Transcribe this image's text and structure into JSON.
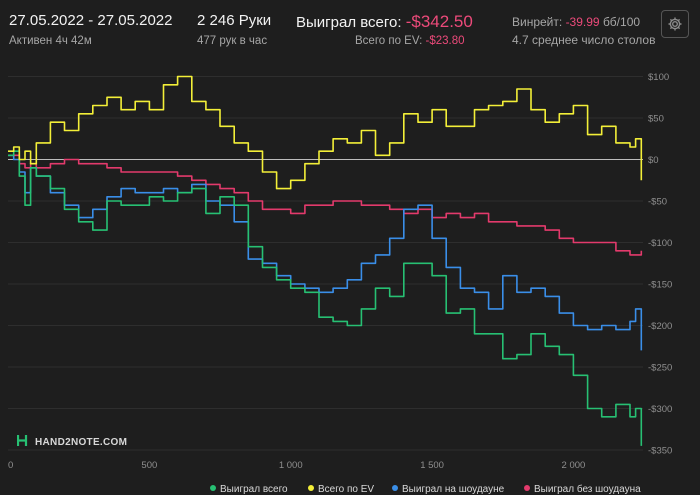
{
  "header": {
    "date_range": "27.05.2022 - 27.05.2022",
    "active_time": "Активен 4ч 42м",
    "hands": "2 246 Руки",
    "hands_per_hour": "477 рук в час",
    "won_label": "Выиграл всего:",
    "won_value": "-$342.50",
    "ev_label": "Всего по EV:",
    "ev_value": "-$23.80",
    "winrate_label": "Винрейт:",
    "winrate_value": "-39.99",
    "winrate_unit": "бб/100",
    "tables": "4.7 среднее число столов"
  },
  "logo": "HAND2NOTE.COM",
  "colors": {
    "winnings": "#27c073",
    "ev": "#f3ef38",
    "showdown": "#3a8ee8",
    "non_showdown": "#e33a6c",
    "negative": "#ec4a7a"
  },
  "chart_data": {
    "type": "line",
    "xlim": [
      0,
      2246
    ],
    "ylim": [
      -350,
      110
    ],
    "x_ticks": [
      0,
      500,
      1000,
      1500,
      2000
    ],
    "x_tick_labels": [
      "0",
      "500",
      "1 000",
      "1 500",
      "2 000"
    ],
    "y_ticks": [
      100,
      50,
      0,
      -50,
      -100,
      -150,
      -200,
      -250,
      -300,
      -350
    ],
    "y_tick_labels": [
      "$100",
      "$50",
      "$0",
      "-$50",
      "-$100",
      "-$150",
      "-$200",
      "-$250",
      "-$300",
      "-$350"
    ],
    "grid": true,
    "legend_position": "bottom",
    "series": [
      {
        "name": "Выиграл всего",
        "color": "#27c073",
        "x": [
          0,
          20,
          40,
          60,
          80,
          100,
          150,
          200,
          250,
          300,
          350,
          400,
          450,
          500,
          550,
          600,
          650,
          700,
          750,
          800,
          850,
          900,
          950,
          1000,
          1050,
          1100,
          1150,
          1200,
          1250,
          1300,
          1350,
          1400,
          1450,
          1500,
          1550,
          1600,
          1650,
          1700,
          1750,
          1800,
          1850,
          1900,
          1950,
          2000,
          2050,
          2100,
          2150,
          2200,
          2220,
          2240
        ],
        "y": [
          5,
          10,
          -20,
          -55,
          -10,
          -20,
          -35,
          -60,
          -75,
          -85,
          -50,
          -55,
          -55,
          -45,
          -50,
          -40,
          -35,
          -65,
          -45,
          -55,
          -105,
          -130,
          -145,
          -155,
          -160,
          -190,
          -195,
          -200,
          -180,
          -155,
          -165,
          -125,
          -125,
          -140,
          -185,
          -180,
          -210,
          -210,
          -240,
          -235,
          -210,
          -225,
          -235,
          -260,
          -300,
          -310,
          -295,
          -310,
          -300,
          -345
        ]
      },
      {
        "name": "Всего по EV",
        "color": "#f3ef38",
        "x": [
          0,
          20,
          40,
          60,
          80,
          100,
          150,
          200,
          250,
          300,
          350,
          400,
          450,
          500,
          550,
          600,
          650,
          700,
          750,
          800,
          850,
          900,
          950,
          1000,
          1050,
          1100,
          1150,
          1200,
          1250,
          1300,
          1350,
          1400,
          1450,
          1500,
          1550,
          1600,
          1650,
          1700,
          1750,
          1800,
          1850,
          1900,
          1950,
          2000,
          2050,
          2100,
          2150,
          2200,
          2220,
          2240
        ],
        "y": [
          10,
          15,
          0,
          10,
          -5,
          20,
          45,
          35,
          55,
          65,
          75,
          60,
          70,
          60,
          90,
          100,
          70,
          60,
          40,
          20,
          10,
          -15,
          -35,
          -25,
          -5,
          10,
          25,
          20,
          35,
          5,
          20,
          55,
          45,
          60,
          40,
          40,
          60,
          65,
          70,
          85,
          60,
          45,
          55,
          65,
          30,
          40,
          20,
          15,
          25,
          -25
        ]
      },
      {
        "name": "Выиграл на шоудауне",
        "color": "#3a8ee8",
        "x": [
          0,
          20,
          40,
          60,
          80,
          100,
          150,
          200,
          250,
          300,
          350,
          400,
          450,
          500,
          550,
          600,
          650,
          700,
          750,
          800,
          850,
          900,
          950,
          1000,
          1050,
          1100,
          1150,
          1200,
          1250,
          1300,
          1350,
          1400,
          1450,
          1500,
          1550,
          1600,
          1650,
          1700,
          1750,
          1800,
          1850,
          1900,
          1950,
          2000,
          2050,
          2100,
          2150,
          2200,
          2220,
          2240
        ],
        "y": [
          5,
          0,
          -15,
          -40,
          -10,
          -20,
          -40,
          -55,
          -70,
          -60,
          -45,
          -35,
          -40,
          -40,
          -35,
          -40,
          -30,
          -50,
          -55,
          -75,
          -120,
          -125,
          -140,
          -150,
          -155,
          -160,
          -155,
          -145,
          -125,
          -115,
          -95,
          -60,
          -55,
          -95,
          -130,
          -155,
          -160,
          -180,
          -140,
          -160,
          -155,
          -165,
          -185,
          -200,
          -205,
          -200,
          -205,
          -195,
          -180,
          -230
        ]
      },
      {
        "name": "Выиграл без шоудауна",
        "color": "#e33a6c",
        "x": [
          0,
          20,
          40,
          60,
          80,
          100,
          150,
          200,
          250,
          300,
          350,
          400,
          450,
          500,
          550,
          600,
          650,
          700,
          750,
          800,
          850,
          900,
          950,
          1000,
          1050,
          1100,
          1150,
          1200,
          1250,
          1300,
          1350,
          1400,
          1450,
          1500,
          1550,
          1600,
          1650,
          1700,
          1750,
          1800,
          1850,
          1900,
          1950,
          2000,
          2050,
          2100,
          2150,
          2200,
          2220,
          2240
        ],
        "y": [
          5,
          5,
          -5,
          -10,
          -5,
          -10,
          -5,
          0,
          -5,
          -5,
          -10,
          -15,
          -15,
          -15,
          -15,
          -20,
          -25,
          -30,
          -35,
          -40,
          -50,
          -60,
          -60,
          -65,
          -55,
          -55,
          -50,
          -50,
          -55,
          -55,
          -60,
          -65,
          -60,
          -70,
          -65,
          -70,
          -65,
          -75,
          -75,
          -80,
          -80,
          -85,
          -95,
          -100,
          -100,
          -100,
          -110,
          -115,
          -115,
          -110
        ]
      }
    ]
  }
}
